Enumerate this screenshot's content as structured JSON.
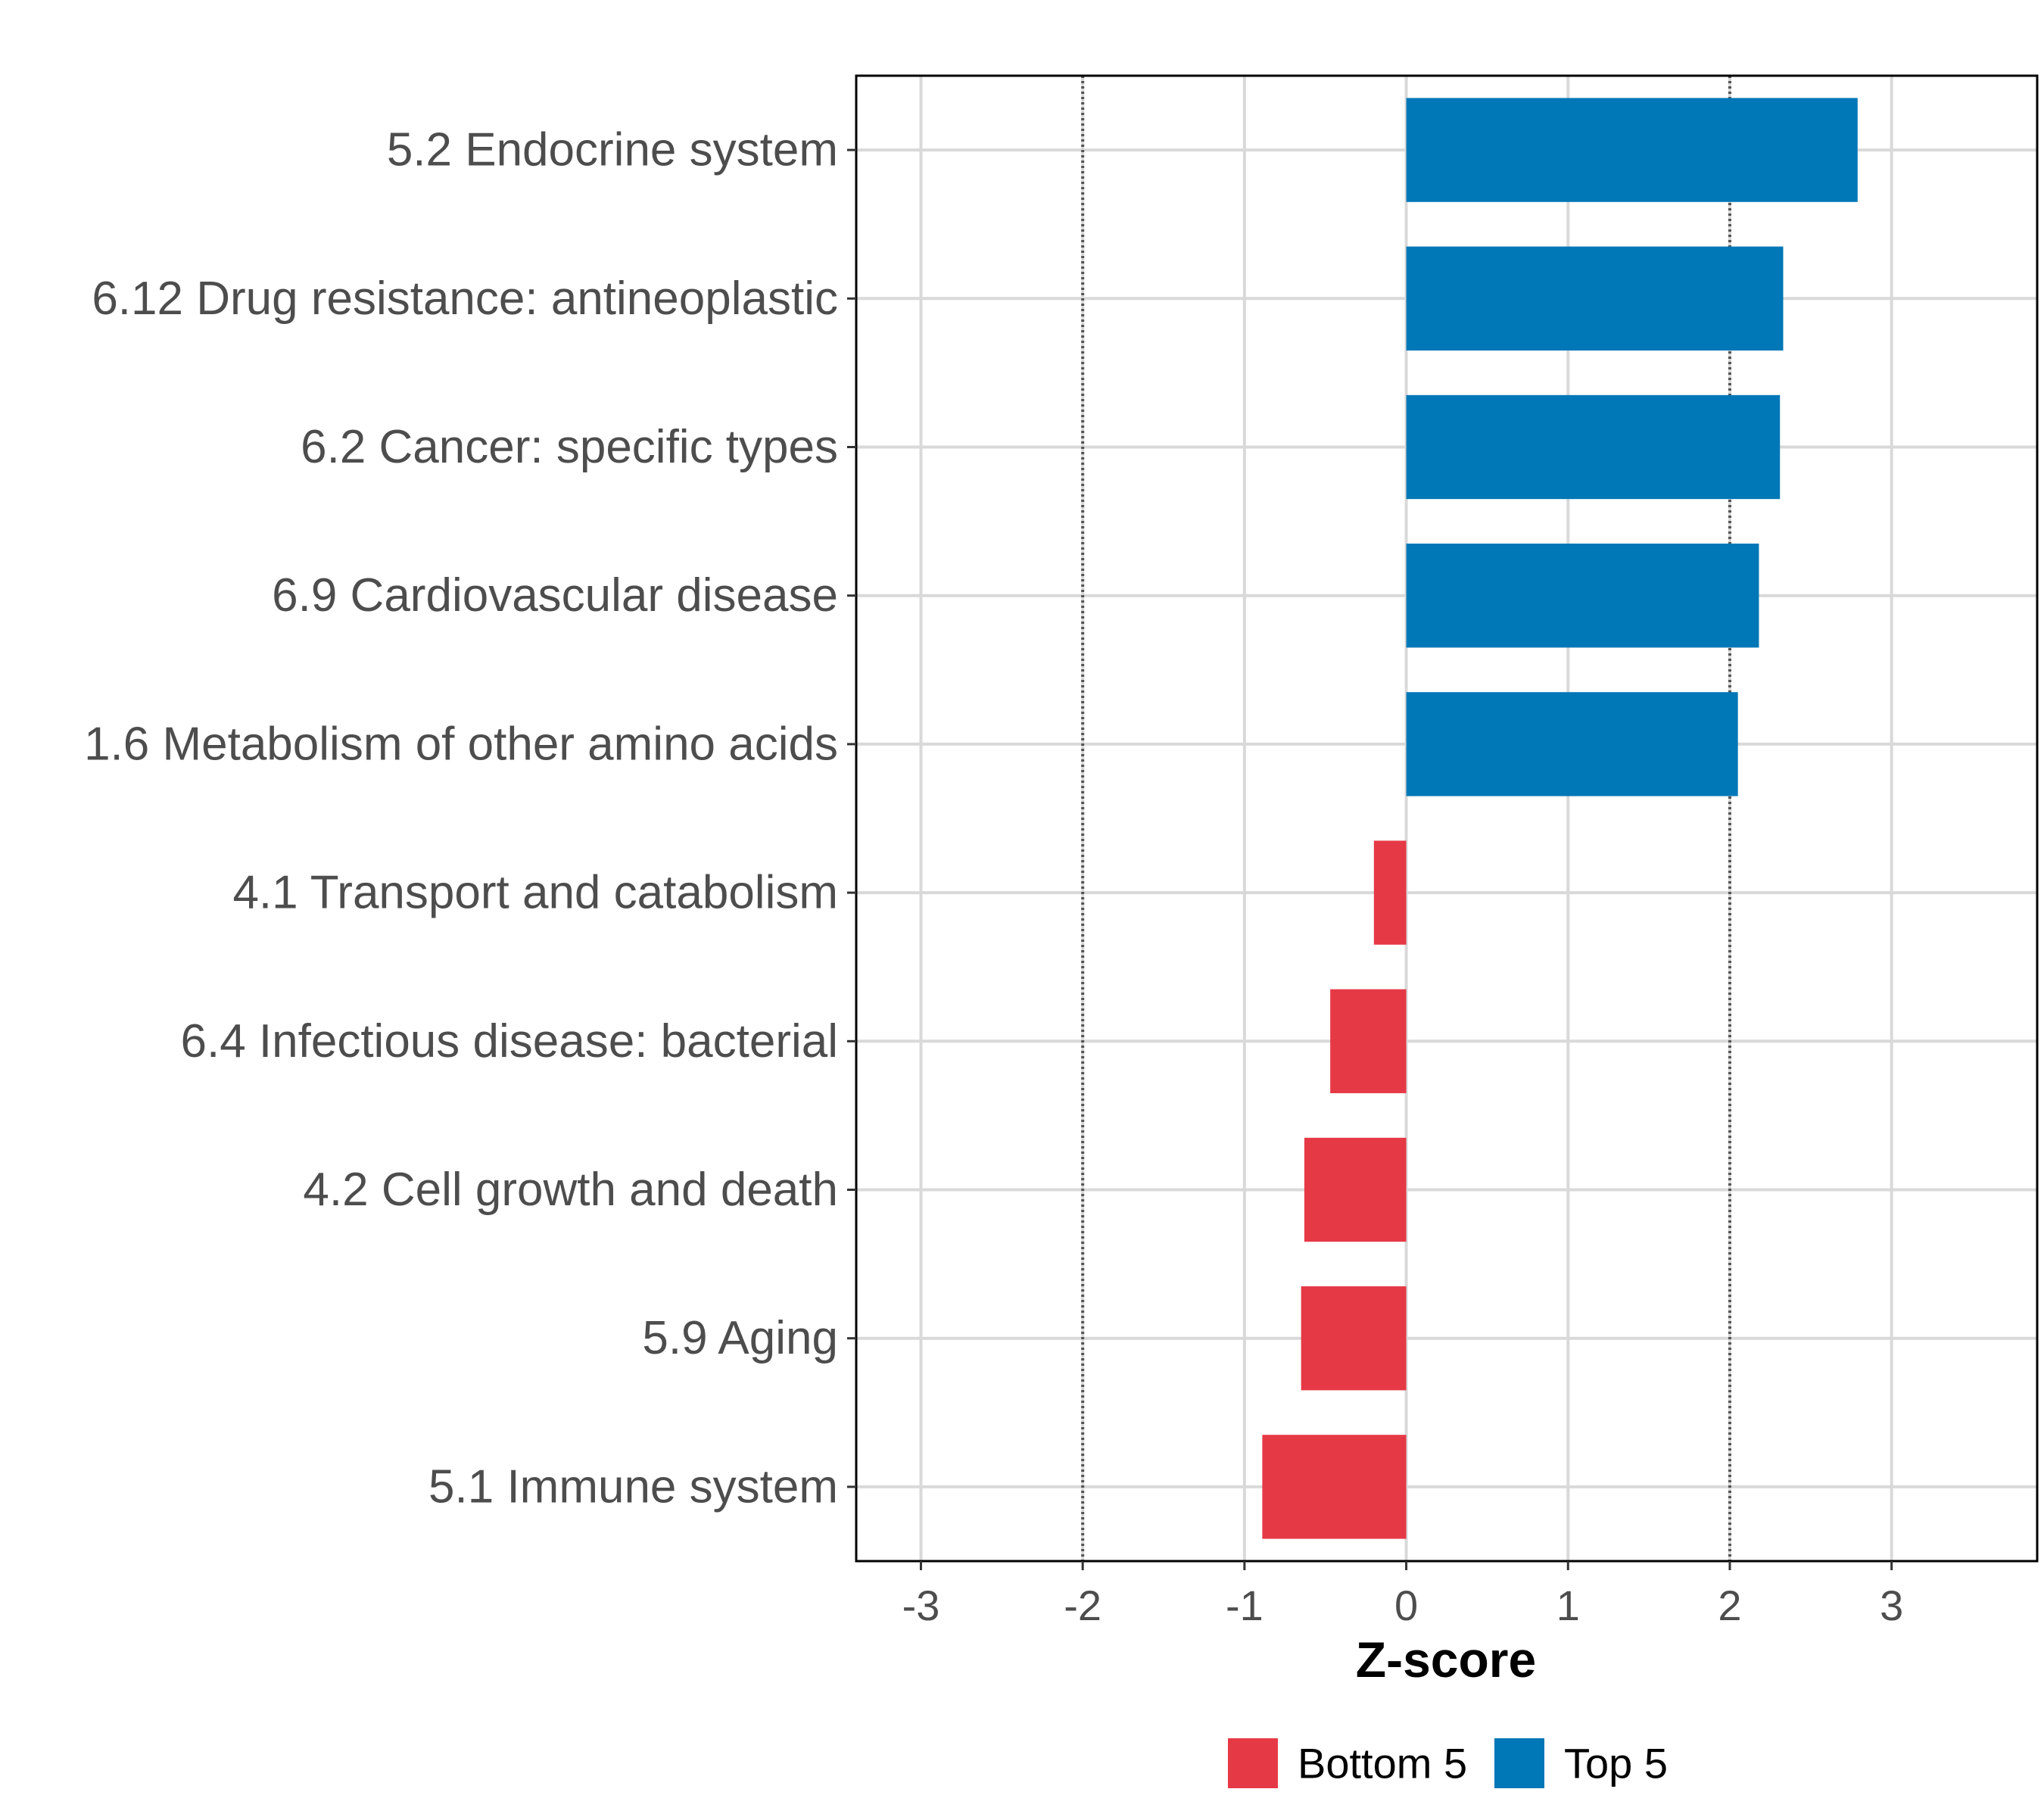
{
  "chart_data": {
    "type": "bar",
    "orientation": "horizontal",
    "title": "",
    "xlabel": "Z-score",
    "ylabel": "",
    "xlim": [
      -3.4,
      3.9
    ],
    "x_ticks": [
      -3,
      -2,
      -1,
      0,
      1,
      2,
      3
    ],
    "x_tick_labels": [
      "-3",
      "-2",
      "-1",
      "0",
      "1",
      "2",
      "3"
    ],
    "threshold_lines": [
      -2,
      2
    ],
    "grid": true,
    "categories": [
      "5.2 Endocrine system",
      "6.12 Drug resistance: antineoplastic",
      "6.2 Cancer: specific types",
      "6.9 Cardiovascular disease",
      "1.6 Metabolism of other amino acids",
      "4.1 Transport and catabolism",
      "6.4 Infectious disease: bacterial",
      "4.2 Cell growth and death",
      "5.9 Aging",
      "5.1 Immune system"
    ],
    "values": [
      2.79,
      2.33,
      2.31,
      2.18,
      2.05,
      -0.2,
      -0.47,
      -0.63,
      -0.65,
      -0.89
    ],
    "groups": [
      "Top 5",
      "Top 5",
      "Top 5",
      "Top 5",
      "Top 5",
      "Bottom 5",
      "Bottom 5",
      "Bottom 5",
      "Bottom 5",
      "Bottom 5"
    ],
    "legend": {
      "position": "bottom",
      "entries": [
        {
          "label": "Bottom 5",
          "color": "#e63946"
        },
        {
          "label": "Top 5",
          "color": "#0077b6"
        }
      ]
    }
  }
}
